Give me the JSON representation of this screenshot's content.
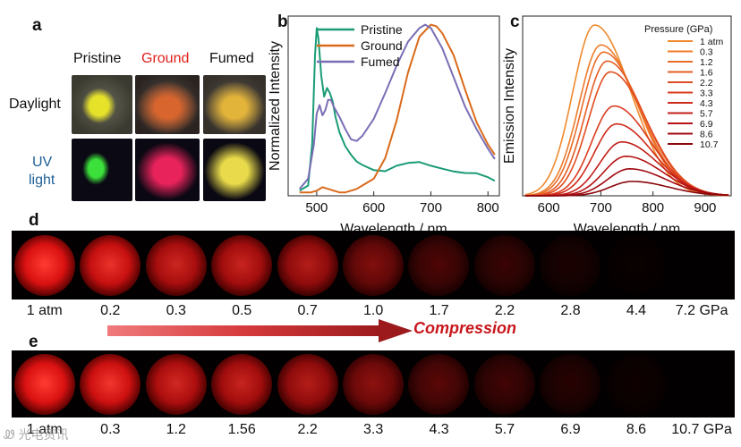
{
  "panels": {
    "a": "a",
    "b": "b",
    "c": "c",
    "d": "d",
    "e": "e"
  },
  "panel_a": {
    "columns": [
      {
        "label": "Pristine",
        "color": "#111111"
      },
      {
        "label": "Ground",
        "color": "#e0201b"
      },
      {
        "label": "Fumed",
        "color": "#111111"
      }
    ],
    "rows": [
      {
        "label_lines": [
          "Daylight"
        ],
        "color": "#111111"
      },
      {
        "label_lines": [
          "UV",
          "light"
        ],
        "color": "#1e5f96"
      }
    ],
    "photo_colors": {
      "daylight": [
        "#e6e22a",
        "#d8652e",
        "#e3b43a"
      ],
      "uv": [
        "#3ce03a",
        "#e8235c",
        "#e8da4a"
      ]
    }
  },
  "chart_data": [
    {
      "id": "b",
      "type": "line",
      "xlabel": "Wavelength / nm",
      "ylabel": "Normalized Intensity",
      "xlim": [
        450,
        820
      ],
      "ylim": [
        0,
        1.05
      ],
      "xticks": [
        500,
        600,
        700,
        800
      ],
      "legend_position": "top-right",
      "series": [
        {
          "name": "Pristine",
          "color": "#1b9b76",
          "x": [
            470,
            485,
            492,
            497,
            500,
            503,
            508,
            513,
            518,
            523,
            528,
            533,
            540,
            550,
            560,
            570,
            580,
            600,
            620,
            640,
            660,
            680,
            700,
            720,
            740,
            760,
            780,
            800,
            812
          ],
          "y": [
            0.03,
            0.06,
            0.3,
            0.82,
            0.98,
            0.92,
            0.7,
            0.58,
            0.63,
            0.6,
            0.55,
            0.46,
            0.37,
            0.29,
            0.24,
            0.2,
            0.18,
            0.15,
            0.15,
            0.17,
            0.18,
            0.19,
            0.18,
            0.17,
            0.15,
            0.13,
            0.12,
            0.1,
            0.09
          ]
        },
        {
          "name": "Ground",
          "color": "#d96a1a",
          "x": [
            470,
            490,
            500,
            510,
            520,
            530,
            540,
            550,
            560,
            570,
            580,
            600,
            620,
            640,
            660,
            680,
            700,
            710,
            720,
            740,
            760,
            780,
            800,
            812
          ],
          "y": [
            0.02,
            0.02,
            0.03,
            0.05,
            0.04,
            0.03,
            0.02,
            0.02,
            0.03,
            0.04,
            0.06,
            0.1,
            0.22,
            0.44,
            0.72,
            0.93,
            1.0,
            0.99,
            0.95,
            0.82,
            0.62,
            0.43,
            0.3,
            0.24
          ]
        },
        {
          "name": "Fumed",
          "color": "#7a6db5",
          "x": [
            470,
            485,
            495,
            500,
            505,
            510,
            515,
            520,
            525,
            530,
            540,
            550,
            560,
            570,
            580,
            600,
            620,
            640,
            660,
            680,
            690,
            700,
            720,
            740,
            760,
            780,
            800,
            812
          ],
          "y": [
            0.04,
            0.1,
            0.3,
            0.48,
            0.53,
            0.47,
            0.5,
            0.56,
            0.56,
            0.52,
            0.46,
            0.39,
            0.33,
            0.32,
            0.35,
            0.45,
            0.6,
            0.76,
            0.9,
            0.98,
            1.0,
            0.98,
            0.87,
            0.7,
            0.52,
            0.38,
            0.27,
            0.22
          ]
        }
      ]
    },
    {
      "id": "c",
      "type": "line",
      "xlabel": "Wavelength / nm",
      "ylabel": "Emission Intensity",
      "xlim": [
        550,
        950
      ],
      "ylim": [
        0,
        1.0
      ],
      "xticks": [
        600,
        700,
        800,
        900
      ],
      "legend_title": "Pressure (GPa)",
      "legend_position": "top-right",
      "series": [
        {
          "name": "1 atm",
          "peak_nm": 688,
          "peak": 0.95,
          "color": "#ef8a2e"
        },
        {
          "name": "0.3",
          "peak_nm": 700,
          "peak": 0.84,
          "color": "#ed7b2a"
        },
        {
          "name": "1.2",
          "peak_nm": 705,
          "peak": 0.8,
          "color": "#ea6c27"
        },
        {
          "name": "1.6",
          "peak_nm": 712,
          "peak": 0.75,
          "color": "#e55c24"
        },
        {
          "name": "2.2",
          "peak_nm": 718,
          "peak": 0.69,
          "color": "#e04c21"
        },
        {
          "name": "3.3",
          "peak_nm": 725,
          "peak": 0.5,
          "color": "#d93b1e"
        },
        {
          "name": "4.3",
          "peak_nm": 730,
          "peak": 0.4,
          "color": "#cf2b1b"
        },
        {
          "name": "5.7",
          "peak_nm": 740,
          "peak": 0.3,
          "color": "#c21d18"
        },
        {
          "name": "6.9",
          "peak_nm": 748,
          "peak": 0.22,
          "color": "#b41214"
        },
        {
          "name": "8.6",
          "peak_nm": 755,
          "peak": 0.15,
          "color": "#a00a10"
        },
        {
          "name": "10.7",
          "peak_nm": 760,
          "peak": 0.08,
          "color": "#8a070c"
        }
      ]
    }
  ],
  "strip_d": {
    "labels": [
      "1 atm",
      "0.2",
      "0.3",
      "0.5",
      "0.7",
      "1.0",
      "1.7",
      "2.2",
      "2.8",
      "4.4",
      "7.2 GPa"
    ],
    "brightness": [
      1.0,
      0.92,
      0.8,
      0.78,
      0.7,
      0.5,
      0.3,
      0.22,
      0.1,
      0.03,
      0.0
    ]
  },
  "strip_e": {
    "labels": [
      "1 atm",
      "0.3",
      "1.2",
      "1.56",
      "2.2",
      "3.3",
      "4.3",
      "5.7",
      "6.9",
      "8.6",
      "10.7 GPa"
    ],
    "brightness": [
      1.0,
      0.95,
      0.82,
      0.78,
      0.7,
      0.55,
      0.35,
      0.25,
      0.15,
      0.05,
      0.0
    ]
  },
  "arrow": {
    "label": "Compression",
    "color": "#c8171c"
  },
  "watermark": "Ꮺ 光电资讯"
}
